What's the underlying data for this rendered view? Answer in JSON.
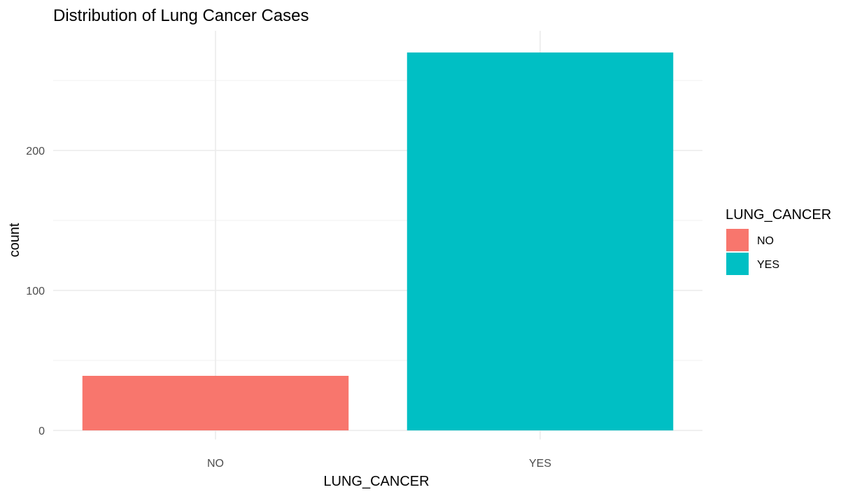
{
  "chart_data": {
    "type": "bar",
    "title": "Distribution of Lung Cancer Cases",
    "xlabel": "LUNG_CANCER",
    "ylabel": "count",
    "categories": [
      "NO",
      "YES"
    ],
    "values": [
      39,
      270
    ],
    "colors": [
      "#F8766D",
      "#00BFC4"
    ],
    "ylim": [
      0,
      270
    ],
    "yticks": [
      0,
      100,
      200
    ],
    "ytick_labels": [
      "0",
      "100",
      "200"
    ],
    "grid": true,
    "legend": {
      "title": "LUNG_CANCER",
      "placement": "right",
      "entries": [
        {
          "label": "NO",
          "color": "#F8766D"
        },
        {
          "label": "YES",
          "color": "#00BFC4"
        }
      ]
    }
  }
}
